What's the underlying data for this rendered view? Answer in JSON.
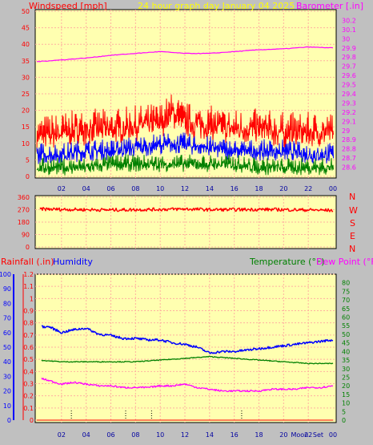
{
  "header": {
    "wind_label": "Windspeed [mph]",
    "title": "24 hour graph day   January 04 2025",
    "baro_label": "Barometer [.in]"
  },
  "compass": {
    "n": "N",
    "w": "W",
    "s": "S",
    "e": "E",
    "n2": "N"
  },
  "bottom_header": {
    "rain_label": "Rainfall (.in)",
    "humidity_label": "Humidity",
    "temp_label": "Temperature (°F)",
    "dew_label": "Dew Point (°F)"
  },
  "x_ticks": [
    "02",
    "04",
    "06",
    "08",
    "10",
    "12",
    "14",
    "16",
    "18",
    "20",
    "22",
    "00"
  ],
  "bottom_x_ticks": [
    "02",
    "04",
    "06",
    "08",
    "10",
    "12",
    "14",
    "16",
    "18",
    "20",
    "Moon",
    "22",
    "Set",
    "00"
  ],
  "colors": {
    "plot_bg": "#ffffb0",
    "grid": "#ffb0a0",
    "wind_gust": "#ff0000",
    "wind_avg": "#0000ff",
    "wind_low": "#008000",
    "barometer": "#ff00ff",
    "direction": "#ff0000",
    "humidity": "#0000ff",
    "temperature": "#008000",
    "dew_point": "#ff00ff",
    "rainfall": "#ff0000"
  },
  "chart_data": [
    {
      "type": "line",
      "x_range": [
        0,
        24
      ],
      "y_left": {
        "label": "Windspeed [mph]",
        "ylim": [
          0,
          50
        ],
        "ticks": [
          0,
          5,
          10,
          15,
          20,
          25,
          30,
          35,
          40,
          45,
          50
        ]
      },
      "y_right": {
        "label": "Barometer [.in]",
        "ylim": [
          28.5,
          30.3
        ],
        "ticks": [
          "28.6",
          "28.7",
          "28.8",
          "28.9",
          "29",
          "29.1",
          "29.2",
          "29.3",
          "29.4",
          "29.5",
          "29.6",
          "29.7",
          "29.8",
          "29.9",
          "30",
          "30.1",
          "30.2"
        ]
      },
      "grid": true,
      "series": [
        {
          "name": "Windspeed [mph]",
          "axis": "left",
          "color": "#ff0000",
          "x": [
            0,
            2,
            4,
            6,
            8,
            10,
            11,
            12,
            14,
            16,
            18,
            20,
            22,
            24
          ],
          "y": [
            13,
            14,
            15,
            15,
            16,
            17,
            20,
            17,
            16,
            15,
            15,
            14,
            14,
            14
          ]
        },
        {
          "x": [
            0,
            2,
            4,
            6,
            8,
            10,
            12,
            14,
            16,
            18,
            20,
            22,
            24
          ],
          "y": [
            7,
            7,
            8,
            8,
            9,
            10,
            10,
            9,
            8,
            8,
            8,
            7,
            7
          ],
          "axis": "left",
          "color": "#0000ff"
        },
        {
          "x": [
            0,
            2,
            4,
            6,
            8,
            10,
            12,
            14,
            16,
            18,
            20,
            22,
            24
          ],
          "y": [
            3,
            3,
            3,
            4,
            4,
            4,
            4,
            4,
            4,
            3,
            3,
            3,
            3
          ],
          "axis": "left",
          "color": "#008000"
        },
        {
          "name": "Barometer [.in]",
          "axis": "right",
          "color": "#ff00ff",
          "x": [
            0,
            2,
            4,
            6,
            8,
            10,
            12,
            14,
            16,
            18,
            20,
            22,
            24
          ],
          "y": [
            29.75,
            29.77,
            29.79,
            29.82,
            29.84,
            29.86,
            29.84,
            29.84,
            29.86,
            29.88,
            29.89,
            29.91,
            29.9
          ]
        }
      ]
    },
    {
      "type": "line",
      "x_range": [
        0,
        24
      ],
      "y_left": {
        "ylim": [
          0,
          360
        ],
        "ticks": [
          0,
          90,
          180,
          270,
          360
        ]
      },
      "grid": true,
      "series": [
        {
          "axis": "left",
          "color": "#ff0000",
          "x": [
            0,
            2,
            4,
            6,
            8,
            10,
            12,
            14,
            16,
            18,
            20,
            22,
            24
          ],
          "y": [
            275,
            272,
            270,
            268,
            270,
            272,
            275,
            270,
            270,
            272,
            270,
            268,
            265
          ]
        }
      ]
    },
    {
      "type": "line",
      "x_range": [
        0,
        24
      ],
      "y_left": {
        "label": "Humidity",
        "ylim": [
          0,
          100
        ],
        "ticks": [
          0,
          10,
          20,
          30,
          40,
          50,
          60,
          70,
          80,
          90,
          100
        ]
      },
      "y_rain": {
        "label": "Rainfall (.in)",
        "ylim": [
          0,
          1.2
        ],
        "ticks": [
          "0",
          "0.1",
          "0.2",
          "0.3",
          "0.4",
          "0.5",
          "0.6",
          "0.7",
          "0.8",
          "0.9",
          "1",
          "1.1",
          "1.2"
        ]
      },
      "y_right": {
        "label": "Temperature (°F)",
        "ylim": [
          0,
          85
        ],
        "ticks": [
          0,
          5,
          10,
          15,
          20,
          25,
          30,
          35,
          40,
          45,
          50,
          55,
          60,
          65,
          70,
          75,
          80
        ]
      },
      "grid": true,
      "series": [
        {
          "name": "Humidity",
          "axis": "left",
          "color": "#0000ff",
          "x": [
            0,
            1,
            2,
            3,
            4,
            5,
            6,
            7,
            8,
            9,
            10,
            11,
            12,
            13,
            14,
            15,
            16,
            17,
            18,
            19,
            20,
            21,
            22,
            23,
            24
          ],
          "y": [
            64,
            64,
            60,
            62,
            63,
            59,
            58,
            56,
            56,
            55,
            55,
            53,
            52,
            50,
            46,
            47,
            47,
            48,
            49,
            50,
            51,
            52,
            53,
            54,
            55
          ]
        },
        {
          "name": "Temperature (°F)",
          "axis": "right",
          "color": "#008000",
          "x": [
            0,
            2,
            4,
            6,
            8,
            10,
            12,
            14,
            16,
            18,
            20,
            22,
            24
          ],
          "y": [
            35,
            34,
            34,
            34,
            34,
            35,
            36,
            37,
            36,
            35,
            34,
            33,
            33
          ]
        },
        {
          "name": "Dew Point (°F)",
          "axis": "right",
          "color": "#ff00ff",
          "x": [
            0,
            1,
            2,
            3,
            4,
            5,
            6,
            7,
            8,
            9,
            10,
            11,
            12,
            13,
            14,
            15,
            16,
            17,
            18,
            19,
            20,
            21,
            22,
            23,
            24
          ],
          "y": [
            25,
            23,
            21,
            22,
            21,
            20,
            20,
            19,
            19,
            19,
            20,
            20,
            21,
            19,
            18,
            17,
            17,
            17,
            17,
            18,
            18,
            18,
            19,
            19,
            20
          ]
        },
        {
          "name": "Rainfall (.in)",
          "axis": "rain",
          "color": "#ff0000",
          "x": [
            0,
            24
          ],
          "y": [
            0,
            0
          ]
        }
      ]
    }
  ]
}
